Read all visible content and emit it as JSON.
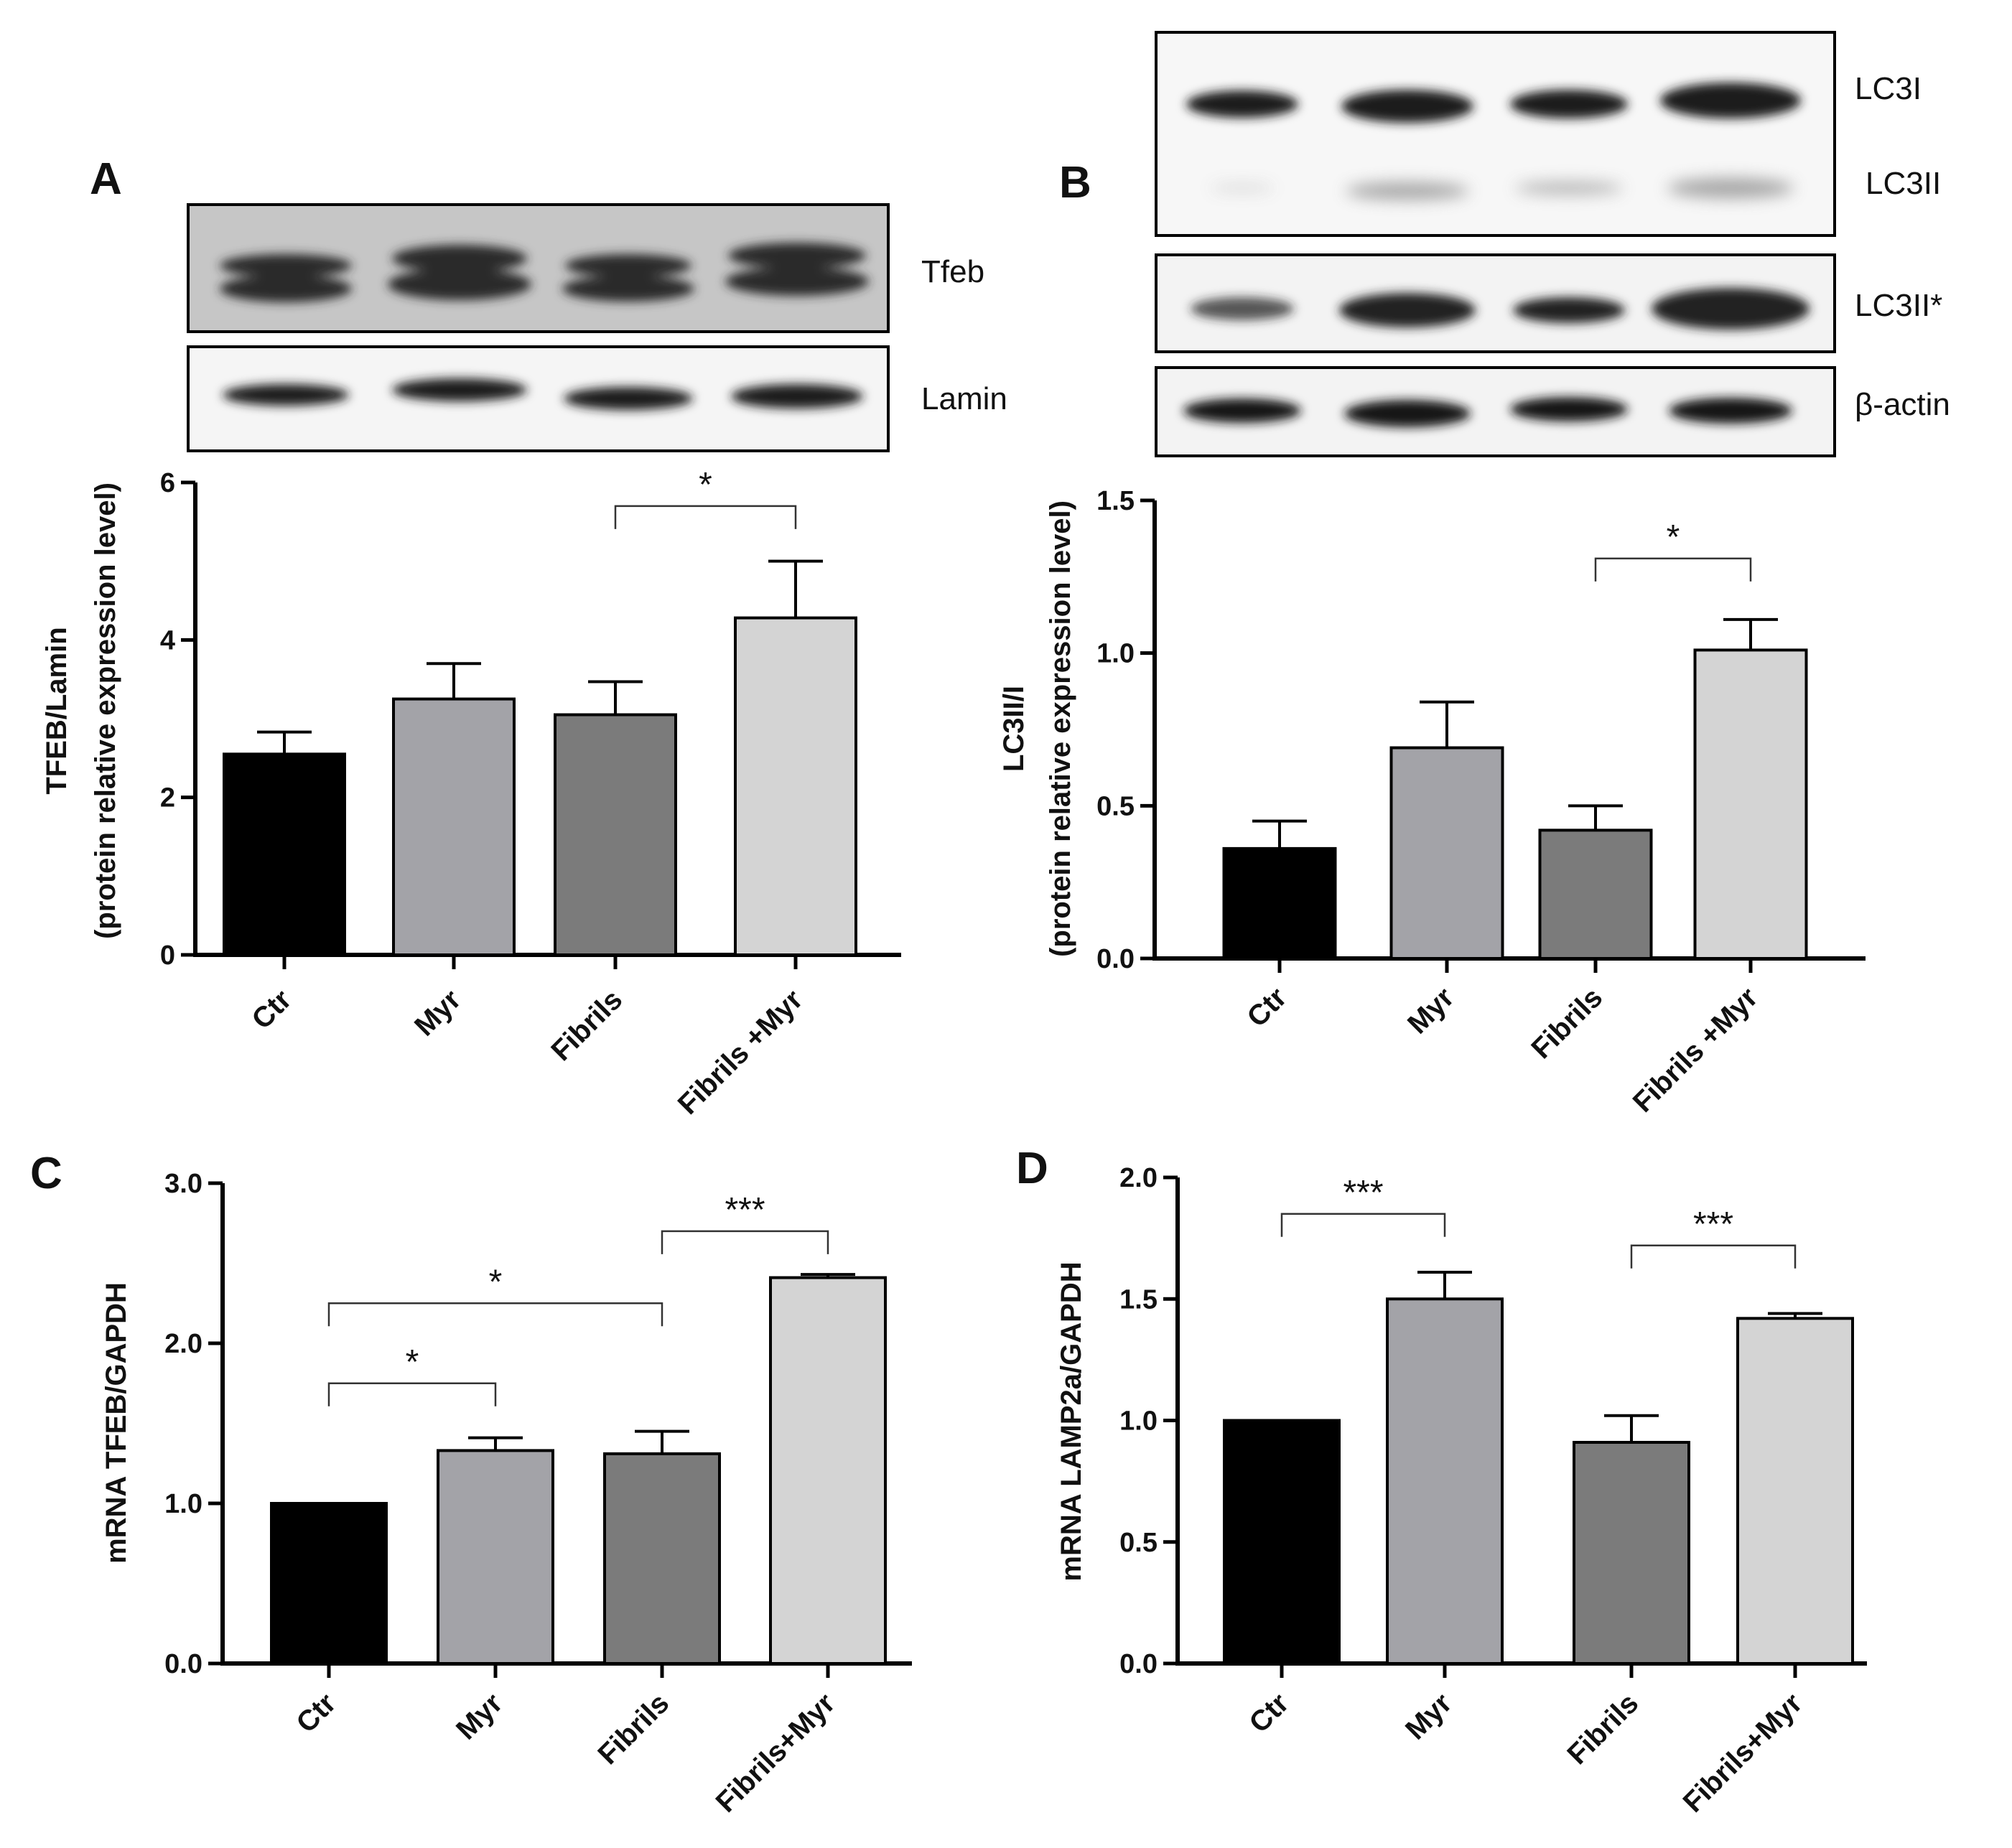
{
  "panels": {
    "A": {
      "letter": "A",
      "blot_labels": [
        "Tfeb",
        "Lamin"
      ]
    },
    "B": {
      "letter": "B",
      "blot_labels": [
        "LC3I",
        "LC3II",
        "LC3II*",
        "β-actin"
      ]
    },
    "C": {
      "letter": "C"
    },
    "D": {
      "letter": "D"
    }
  },
  "colors": {
    "Ctr": "#000000",
    "Myr": "#a3a3a8",
    "Fibrils": "#7b7b7b",
    "Fibrils+Myr": "#d4d4d4"
  },
  "chart_data": [
    {
      "panel": "A",
      "type": "bar",
      "categories": [
        "Ctr",
        "Myr",
        "Fibrils",
        "Fibrils +Myr"
      ],
      "values": [
        2.55,
        3.25,
        3.05,
        4.28
      ],
      "errors": [
        0.28,
        0.45,
        0.42,
        0.72
      ],
      "ylabel_lines": [
        "TFEB/Lamin",
        "(protein relative expression level)"
      ],
      "ylim": [
        0,
        6
      ],
      "yticks": [
        0,
        2,
        4,
        6
      ],
      "ytick_labels": [
        "0",
        "2",
        "4",
        "6"
      ],
      "significance": [
        {
          "from": 2,
          "to": 3,
          "label": "*",
          "y": 5.7
        }
      ]
    },
    {
      "panel": "B",
      "type": "bar",
      "categories": [
        "Ctr",
        "Myr",
        "Fibrils",
        "Fibrils +Myr"
      ],
      "values": [
        0.36,
        0.69,
        0.42,
        1.01
      ],
      "errors": [
        0.09,
        0.15,
        0.08,
        0.1
      ],
      "ylabel_lines": [
        "LC3II/I",
        "(protein relative expression level)"
      ],
      "ylim": [
        0,
        1.5
      ],
      "yticks": [
        0,
        0.5,
        1.0,
        1.5
      ],
      "ytick_labels": [
        "0.0",
        "0.5",
        "1.0",
        "1.5"
      ],
      "significance": [
        {
          "from": 2,
          "to": 3,
          "label": "*",
          "y": 1.31
        }
      ]
    },
    {
      "panel": "C",
      "type": "bar",
      "categories": [
        "Ctr",
        "Myr",
        "Fibrils",
        "Fibrils+Myr"
      ],
      "values": [
        1.0,
        1.33,
        1.31,
        2.41
      ],
      "errors": [
        0.0,
        0.08,
        0.14,
        0.02
      ],
      "ylabel_lines": [
        "mRNA TFEB/GAPDH"
      ],
      "ylim": [
        0,
        3.0
      ],
      "yticks": [
        0,
        1.0,
        2.0,
        3.0
      ],
      "ytick_labels": [
        "0.0",
        "1.0",
        "2.0",
        "3.0"
      ],
      "significance": [
        {
          "from": 0,
          "to": 1,
          "label": "*",
          "y": 1.75
        },
        {
          "from": 0,
          "to": 2,
          "label": "*",
          "y": 2.25
        },
        {
          "from": 2,
          "to": 3,
          "label": "***",
          "y": 2.7
        }
      ]
    },
    {
      "panel": "D",
      "type": "bar",
      "categories": [
        "Ctr",
        "Myr",
        "Fibrils",
        "Fibrils+Myr"
      ],
      "values": [
        1.0,
        1.5,
        0.91,
        1.42
      ],
      "errors": [
        0.0,
        0.11,
        0.11,
        0.02
      ],
      "ylabel_lines": [
        "mRNA LAMP2a/GAPDH"
      ],
      "ylim": [
        0,
        2.0
      ],
      "yticks": [
        0,
        0.5,
        1.0,
        1.5,
        2.0
      ],
      "ytick_labels": [
        "0.0",
        "0.5",
        "1.0",
        "1.5",
        "2.0"
      ],
      "significance": [
        {
          "from": 0,
          "to": 1,
          "label": "***",
          "y": 1.85
        },
        {
          "from": 2,
          "to": 3,
          "label": "***",
          "y": 1.72
        }
      ]
    }
  ]
}
